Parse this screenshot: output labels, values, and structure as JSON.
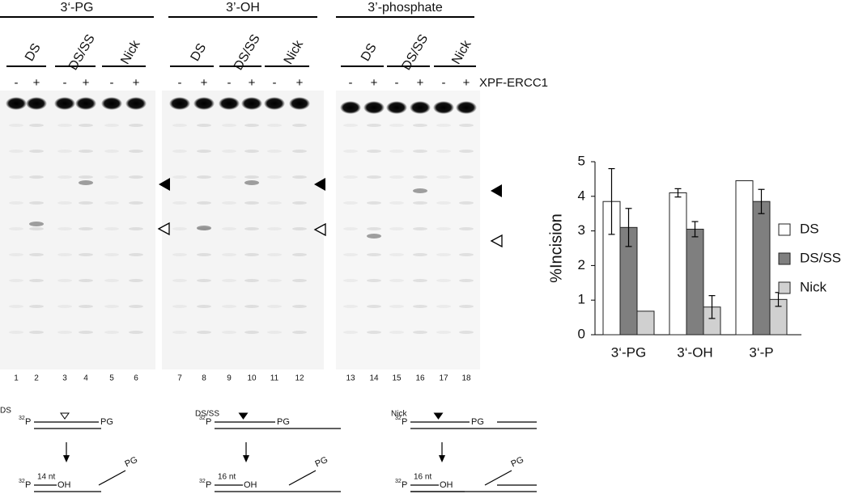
{
  "gel": {
    "groups": [
      {
        "title": "3‘-PG",
        "lanes": [
          "DS",
          "DS/SS",
          "Nick"
        ]
      },
      {
        "title": "3’-OH",
        "lanes": [
          "DS",
          "DS/SS",
          "Nick"
        ]
      },
      {
        "title": "3’-phosphate",
        "lanes": [
          "DS",
          "DS/SS",
          "Nick"
        ]
      }
    ],
    "signs": [
      "-",
      "+"
    ],
    "enzyme": "XPF-ERCC1",
    "lane_numbers": [
      1,
      2,
      3,
      4,
      5,
      6,
      7,
      8,
      9,
      10,
      11,
      12,
      13,
      14,
      15,
      16,
      17,
      18
    ]
  },
  "chart_data": {
    "type": "bar",
    "y_label": "%Incision",
    "categories": [
      "3‘-PG",
      "3‘-OH",
      "3‘-P"
    ],
    "series": [
      {
        "name": "DS",
        "color": "#ffffff",
        "values": [
          3.85,
          4.1,
          4.45
        ],
        "errors": [
          0.95,
          0.12,
          null
        ]
      },
      {
        "name": "DS/SS",
        "color": "#7f7f7f",
        "values": [
          3.1,
          3.05,
          3.85
        ],
        "errors": [
          0.55,
          0.22,
          0.35
        ]
      },
      {
        "name": "Nick",
        "color": "#d0d0d0",
        "values": [
          0.68,
          0.8,
          1.02
        ],
        "errors": [
          null,
          0.33,
          0.2
        ]
      }
    ],
    "ylim": [
      0,
      5
    ],
    "yticks": [
      0,
      1,
      2,
      3,
      4,
      5
    ]
  },
  "diagrams": [
    {
      "label": "DS",
      "isotope": "32",
      "end": "P",
      "cap": "PG",
      "length": "14 nt",
      "cut_end": "OH"
    },
    {
      "label": "DS/SS",
      "isotope": "32",
      "end": "P",
      "cap": "PG",
      "length": "16 nt",
      "cut_end": "OH"
    },
    {
      "label": "Nick",
      "isotope": "32",
      "end": "P",
      "cap": "PG",
      "length": "16 nt",
      "cut_end": "OH"
    }
  ]
}
